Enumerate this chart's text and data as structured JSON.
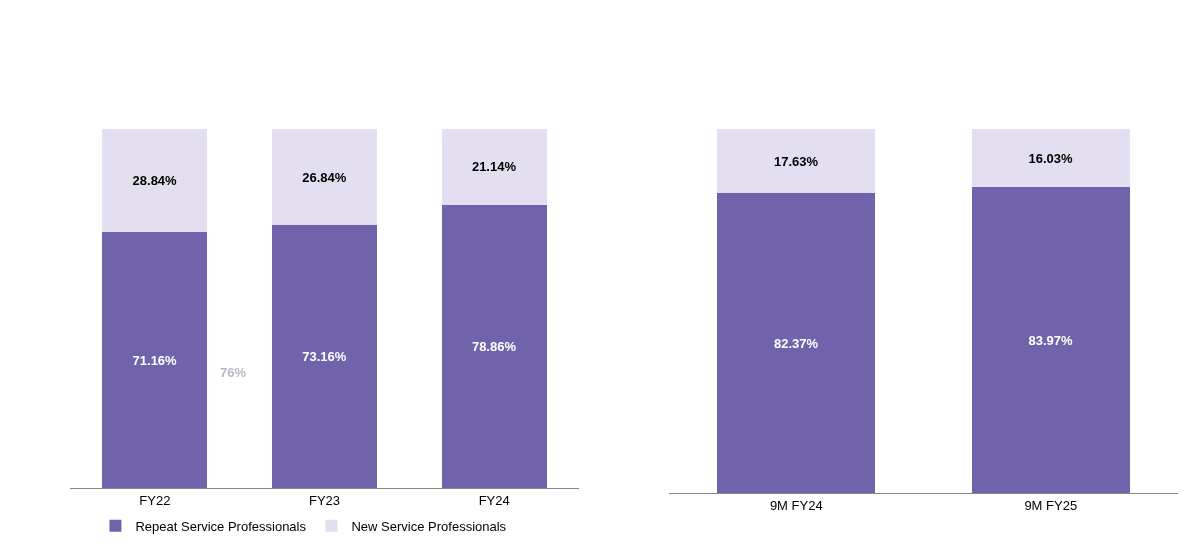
{
  "chart_data": [
    {
      "type": "bar",
      "categories": [
        "FY22",
        "FY23",
        "FY24"
      ],
      "stacked": true,
      "legend": "bottom",
      "annotations": [
        "76%"
      ],
      "series": [
        {
          "name": "Repeat Service Professionals",
          "color": "#7063ab",
          "values": [
            71.16,
            73.16,
            78.86
          ],
          "value_labels": [
            "71.16%",
            "73.16%",
            "78.86%"
          ]
        },
        {
          "name": "New Service Professionals",
          "color": "#e3dff0",
          "values": [
            28.84,
            26.84,
            21.14
          ],
          "value_labels": [
            "28.84%",
            "26.84%",
            "21.14%"
          ]
        }
      ]
    },
    {
      "type": "bar",
      "categories": [
        "9M FY24",
        "9M FY25"
      ],
      "stacked": true,
      "series": [
        {
          "color": "#7063ab",
          "values": [
            82.37,
            83.97
          ],
          "value_labels": [
            "82.37%",
            "83.97%"
          ]
        },
        {
          "color": "#e3dff0",
          "values": [
            17.63,
            16.03
          ],
          "value_labels": [
            "17.63%",
            "16.03%"
          ]
        }
      ]
    }
  ]
}
